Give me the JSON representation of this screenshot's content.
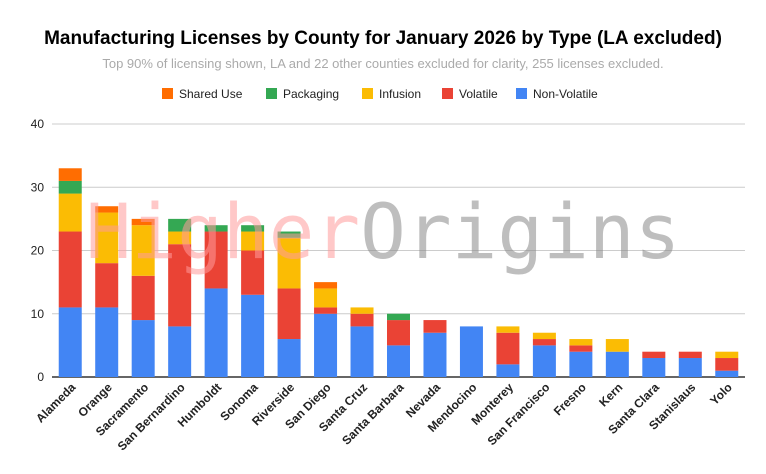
{
  "chart_data": {
    "type": "bar",
    "stacked": true,
    "title": "Manufacturing Licenses by County for January 2026 by Type (LA excluded)",
    "subtitle": "Top 90% of licensing shown, LA and 22 other counties excluded for clarity, 255 licenses excluded.",
    "xlabel": "",
    "ylabel": "",
    "ylim": [
      0,
      40
    ],
    "yticks": [
      "0",
      "10",
      "20",
      "30",
      "40"
    ],
    "grid": true,
    "legend_position": "top",
    "watermark": [
      "Higher",
      "Origins"
    ],
    "categories": [
      "Alameda",
      "Orange",
      "Sacramento",
      "San Bernardino",
      "Humboldt",
      "Sonoma",
      "Riverside",
      "San Diego",
      "Santa Cruz",
      "Santa Barbara",
      "Nevada",
      "Mendocino",
      "Monterey",
      "San Francisco",
      "Fresno",
      "Kern",
      "Santa Clara",
      "Stanislaus",
      "Yolo"
    ],
    "series": [
      {
        "name": "Non-Volatile",
        "color": "#4285f4",
        "values": [
          11,
          11,
          9,
          8,
          14,
          13,
          6,
          10,
          8,
          5,
          7,
          8,
          2,
          5,
          4,
          4,
          3,
          3,
          1
        ]
      },
      {
        "name": "Volatile",
        "color": "#ea4335",
        "values": [
          12,
          7,
          7,
          13,
          9,
          7,
          8,
          1,
          2,
          4,
          2,
          0,
          5,
          1,
          1,
          0,
          1,
          1,
          2
        ]
      },
      {
        "name": "Infusion",
        "color": "#fbbc04",
        "values": [
          6,
          8,
          8,
          2,
          0,
          3,
          8,
          3,
          1,
          0,
          0,
          0,
          1,
          1,
          1,
          2,
          0,
          0,
          1
        ]
      },
      {
        "name": "Packaging",
        "color": "#34a853",
        "values": [
          2,
          0,
          0,
          2,
          1,
          1,
          1,
          0,
          0,
          1,
          0,
          0,
          0,
          0,
          0,
          0,
          0,
          0,
          0
        ]
      },
      {
        "name": "Shared Use",
        "color": "#ff6d01",
        "values": [
          2,
          1,
          1,
          0,
          0,
          0,
          0,
          1,
          0,
          0,
          0,
          0,
          0,
          0,
          0,
          0,
          0,
          0,
          0
        ]
      }
    ]
  }
}
